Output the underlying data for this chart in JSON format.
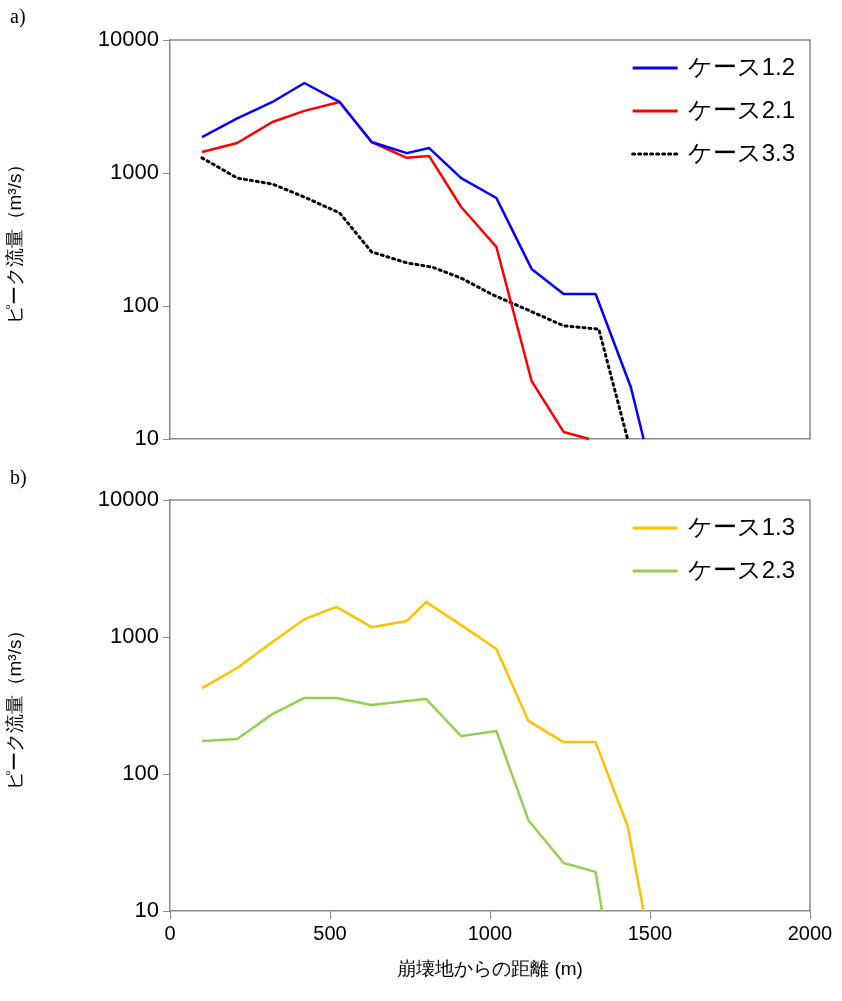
{
  "chart_data": [
    {
      "type": "line",
      "title": "a)",
      "ylabel": "ピーク流量（m³/s）",
      "log": "y",
      "xlim": [
        0,
        2000
      ],
      "xticks": [
        0,
        500,
        1000,
        1500,
        2000
      ],
      "ylim": [
        10,
        10000
      ],
      "yticks": [
        10,
        100,
        1000,
        10000
      ],
      "tick_labels": "y",
      "grid": false,
      "legend": "top right",
      "series": [
        {
          "name": "ケース1.2",
          "color": "#0000ff",
          "line_style": "solid",
          "x": [
            100,
            210,
            320,
            420,
            530,
            630,
            740,
            810,
            910,
            1020,
            1130,
            1230,
            1330,
            1440,
            1480
          ],
          "values": [
            1860,
            2570,
            3420,
            4750,
            3420,
            1710,
            1410,
            1540,
            916,
            649,
            190,
            123,
            123,
            24.6,
            10
          ]
        },
        {
          "name": "ケース2.1",
          "color": "#ff0000",
          "line_style": "solid",
          "x": [
            100,
            210,
            320,
            420,
            530,
            630,
            740,
            810,
            910,
            1020,
            1130,
            1230,
            1310
          ],
          "values": [
            1440,
            1680,
            2420,
            2930,
            3420,
            1710,
            1300,
            1340,
            555,
            278,
            27.3,
            11.3,
            10
          ]
        },
        {
          "name": "ケース3.3",
          "color": "#000000",
          "line_style": "dotted",
          "x": [
            100,
            210,
            320,
            420,
            530,
            630,
            740,
            820,
            910,
            1010,
            1120,
            1230,
            1340,
            1430
          ],
          "values": [
            1300,
            916,
            826,
            659,
            501,
            255,
            211,
            196,
            162,
            121,
            93,
            71,
            67,
            10
          ]
        }
      ]
    },
    {
      "type": "line",
      "title": "b)",
      "xlabel": "崩壊地からの距離 (m)",
      "ylabel": "ピーク流量（m³/s）",
      "log": "y",
      "xlim": [
        0,
        2000
      ],
      "xticks": [
        0,
        500,
        1000,
        1500,
        2000
      ],
      "ylim": [
        10,
        10000
      ],
      "yticks": [
        10,
        100,
        1000,
        10000
      ],
      "grid": false,
      "legend": "top right",
      "series": [
        {
          "name": "ケース1.3",
          "color": "#ffc000",
          "line_style": "solid",
          "x": [
            100,
            210,
            320,
            420,
            520,
            630,
            740,
            800,
            910,
            1020,
            1120,
            1230,
            1330,
            1430,
            1480
          ],
          "values": [
            424,
            594,
            920,
            1350,
            1660,
            1180,
            1310,
            1800,
            1220,
            817,
            244,
            171,
            171,
            41.7,
            10
          ]
        },
        {
          "name": "ケース2.3",
          "color": "#92d050",
          "line_style": "solid",
          "x": [
            100,
            210,
            320,
            420,
            520,
            630,
            740,
            800,
            910,
            1020,
            1120,
            1230,
            1330,
            1350
          ],
          "values": [
            174,
            180,
            274,
            359,
            359,
            319,
            341,
            353,
            189,
            206,
            46,
            22.4,
            19.3,
            10
          ]
        }
      ]
    }
  ]
}
